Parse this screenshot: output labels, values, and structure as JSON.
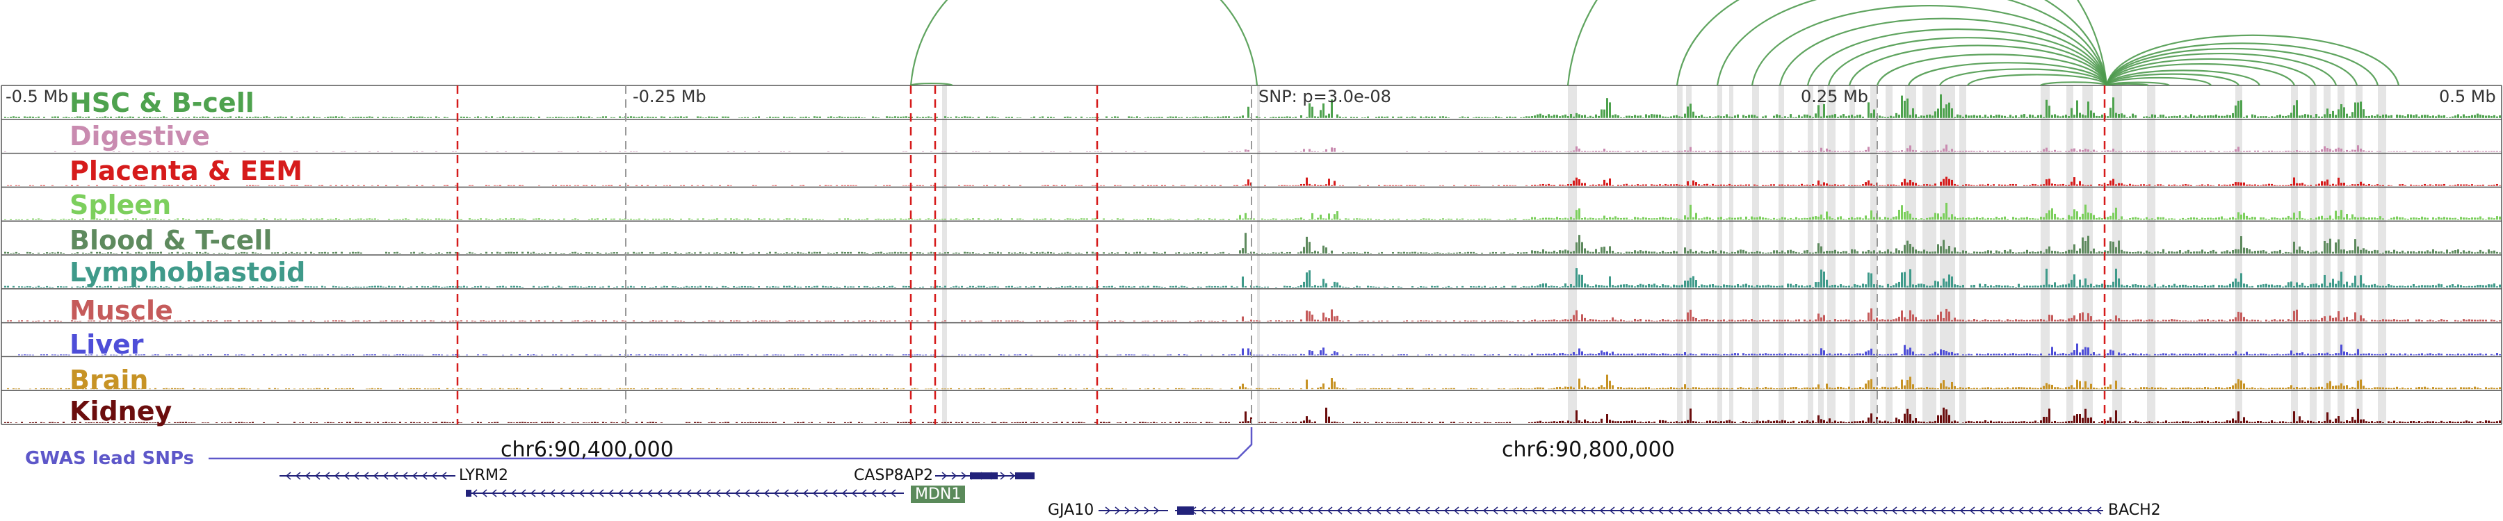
{
  "scale": {
    "left_label": "-0.5 Mb",
    "mid_left_label": "-0.25 Mb",
    "snp_label": "SNP: p=3.0e-08",
    "mid_right_label": "0.25 Mb",
    "right_label": "0.5 Mb"
  },
  "tracks": [
    {
      "label": "HSC & B-cell",
      "color": "#4ea24e"
    },
    {
      "label": "Digestive",
      "color": "#c98bb0"
    },
    {
      "label": "Placenta & EEM",
      "color": "#d61b1b"
    },
    {
      "label": "Spleen",
      "color": "#7ccf5d"
    },
    {
      "label": "Blood & T-cell",
      "color": "#5e8a5e"
    },
    {
      "label": "Lymphoblastoid",
      "color": "#3f9a8a"
    },
    {
      "label": "Muscle",
      "color": "#c55b5b"
    },
    {
      "label": "Liver",
      "color": "#4e4ed8"
    },
    {
      "label": "Brain",
      "color": "#c79325"
    },
    {
      "label": "Kidney",
      "color": "#6b0d0d"
    }
  ],
  "coordinates": {
    "left": "chr6:90,400,000",
    "right": "chr6:90,800,000"
  },
  "gwas": {
    "label": "GWAS lead SNPs",
    "color": "#5d57c9"
  },
  "genes": {
    "lyrm2": "LYRM2",
    "casp8ap2": "CASP8AP2",
    "mdn1": "MDN1",
    "gja10": "GJA10",
    "bach2": "BACH2"
  },
  "colors": {
    "arc": "#4e9a4e",
    "red_dashed": "#d61b1b",
    "gray_dashed": "#999999",
    "highlight": "#dcdcdc",
    "gene": "#22227a"
  }
}
